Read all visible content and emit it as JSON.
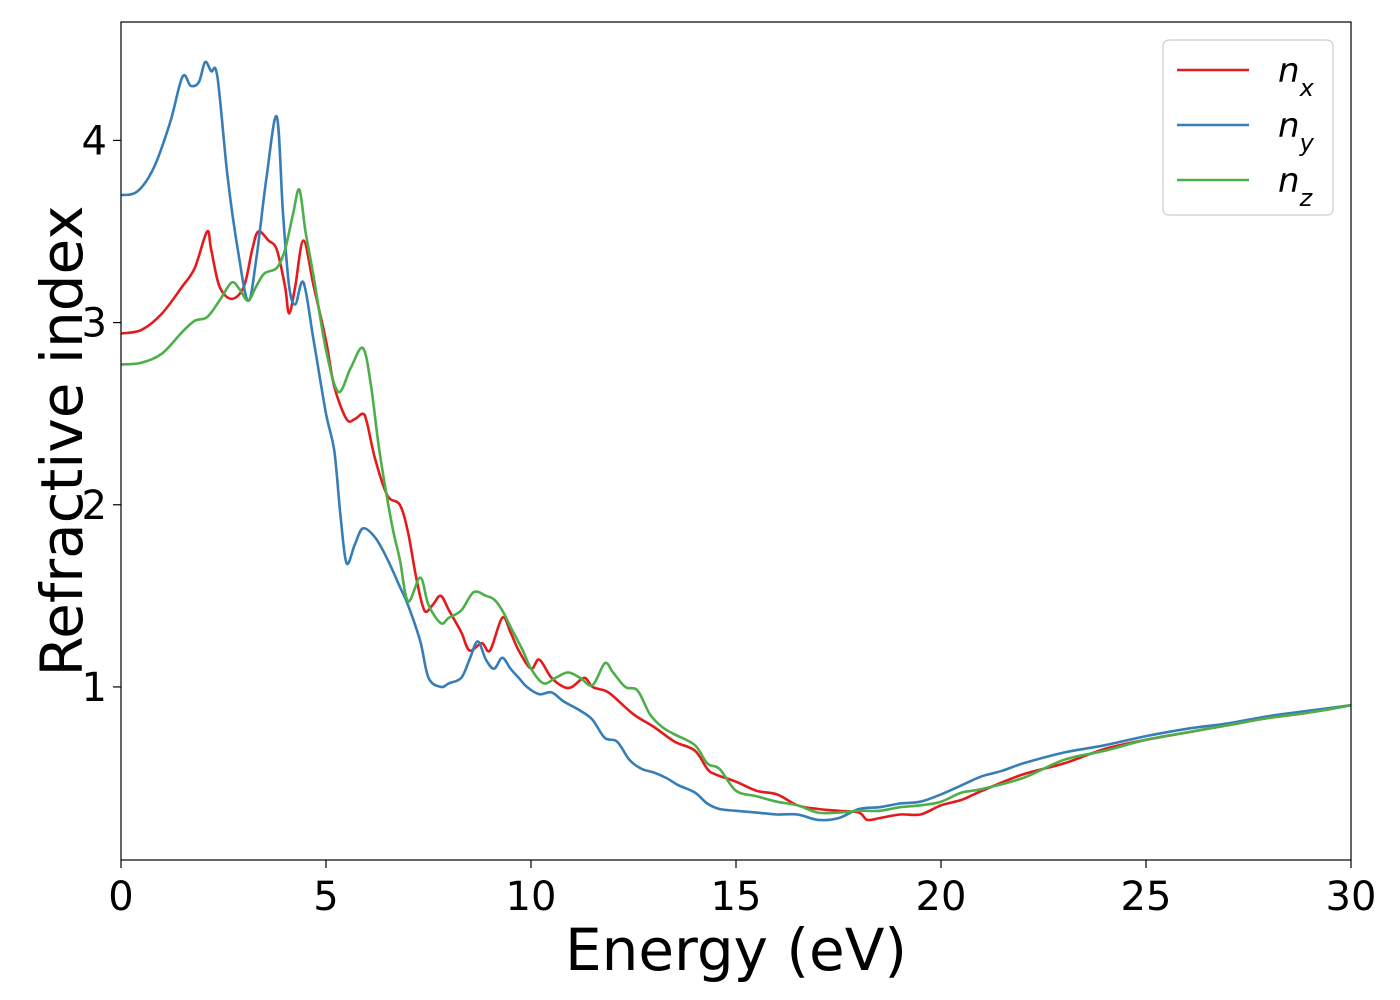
{
  "chart_data": {
    "type": "line",
    "xlabel": "Energy (eV)",
    "ylabel": "Refractive index",
    "xlim": [
      0,
      30
    ],
    "ylim": [
      0.05,
      4.65
    ],
    "xticks": [
      0,
      5,
      10,
      15,
      20,
      25,
      30
    ],
    "yticks": [
      1,
      2,
      3,
      4
    ],
    "grid": false,
    "legend_position": "top-right",
    "series": [
      {
        "name": "n",
        "subscript": "x",
        "color": "#e41a1c",
        "points": [
          [
            0,
            2.94
          ],
          [
            0.5,
            2.96
          ],
          [
            1,
            3.05
          ],
          [
            1.5,
            3.2
          ],
          [
            1.8,
            3.3
          ],
          [
            2.1,
            3.5
          ],
          [
            2.2,
            3.4
          ],
          [
            2.4,
            3.2
          ],
          [
            2.7,
            3.13
          ],
          [
            3,
            3.2
          ],
          [
            3.2,
            3.4
          ],
          [
            3.35,
            3.5
          ],
          [
            3.6,
            3.45
          ],
          [
            3.8,
            3.4
          ],
          [
            4,
            3.2
          ],
          [
            4.1,
            3.05
          ],
          [
            4.25,
            3.2
          ],
          [
            4.45,
            3.45
          ],
          [
            4.7,
            3.2
          ],
          [
            5,
            2.9
          ],
          [
            5.2,
            2.65
          ],
          [
            5.5,
            2.47
          ],
          [
            5.7,
            2.47
          ],
          [
            5.9,
            2.5
          ],
          [
            6,
            2.45
          ],
          [
            6.2,
            2.25
          ],
          [
            6.5,
            2.05
          ],
          [
            6.8,
            2.0
          ],
          [
            7,
            1.85
          ],
          [
            7.2,
            1.6
          ],
          [
            7.4,
            1.42
          ],
          [
            7.6,
            1.45
          ],
          [
            7.8,
            1.5
          ],
          [
            8,
            1.42
          ],
          [
            8.3,
            1.3
          ],
          [
            8.5,
            1.2
          ],
          [
            8.8,
            1.24
          ],
          [
            9,
            1.2
          ],
          [
            9.3,
            1.38
          ],
          [
            9.5,
            1.3
          ],
          [
            9.7,
            1.2
          ],
          [
            10,
            1.1
          ],
          [
            10.2,
            1.15
          ],
          [
            10.5,
            1.05
          ],
          [
            10.8,
            1.0
          ],
          [
            11,
            1.0
          ],
          [
            11.3,
            1.05
          ],
          [
            11.5,
            1.0
          ],
          [
            11.8,
            0.98
          ],
          [
            12,
            0.95
          ],
          [
            12.5,
            0.85
          ],
          [
            13,
            0.78
          ],
          [
            13.5,
            0.7
          ],
          [
            14,
            0.65
          ],
          [
            14.3,
            0.55
          ],
          [
            14.5,
            0.52
          ],
          [
            15,
            0.48
          ],
          [
            15.5,
            0.43
          ],
          [
            16,
            0.41
          ],
          [
            16.5,
            0.35
          ],
          [
            17,
            0.33
          ],
          [
            17.5,
            0.32
          ],
          [
            18,
            0.31
          ],
          [
            18.2,
            0.27
          ],
          [
            18.5,
            0.28
          ],
          [
            19,
            0.3
          ],
          [
            19.5,
            0.3
          ],
          [
            20,
            0.35
          ],
          [
            20.5,
            0.38
          ],
          [
            21,
            0.43
          ],
          [
            22,
            0.52
          ],
          [
            23,
            0.58
          ],
          [
            24,
            0.66
          ],
          [
            25,
            0.71
          ],
          [
            26,
            0.75
          ],
          [
            27,
            0.79
          ],
          [
            28,
            0.83
          ],
          [
            29,
            0.86
          ],
          [
            30,
            0.9
          ]
        ]
      },
      {
        "name": "n",
        "subscript": "y",
        "color": "#377eb8",
        "points": [
          [
            0,
            3.7
          ],
          [
            0.4,
            3.72
          ],
          [
            0.8,
            3.85
          ],
          [
            1.2,
            4.1
          ],
          [
            1.5,
            4.35
          ],
          [
            1.7,
            4.3
          ],
          [
            1.9,
            4.32
          ],
          [
            2.05,
            4.43
          ],
          [
            2.2,
            4.38
          ],
          [
            2.35,
            4.35
          ],
          [
            2.6,
            3.8
          ],
          [
            2.85,
            3.4
          ],
          [
            3.1,
            3.12
          ],
          [
            3.3,
            3.35
          ],
          [
            3.55,
            3.8
          ],
          [
            3.8,
            4.13
          ],
          [
            3.95,
            3.6
          ],
          [
            4.1,
            3.2
          ],
          [
            4.25,
            3.1
          ],
          [
            4.45,
            3.22
          ],
          [
            4.7,
            2.9
          ],
          [
            5,
            2.5
          ],
          [
            5.2,
            2.3
          ],
          [
            5.35,
            1.95
          ],
          [
            5.5,
            1.68
          ],
          [
            5.7,
            1.78
          ],
          [
            5.9,
            1.87
          ],
          [
            6.2,
            1.82
          ],
          [
            6.5,
            1.7
          ],
          [
            6.8,
            1.55
          ],
          [
            7,
            1.45
          ],
          [
            7.3,
            1.25
          ],
          [
            7.5,
            1.05
          ],
          [
            7.8,
            1.0
          ],
          [
            8,
            1.02
          ],
          [
            8.3,
            1.05
          ],
          [
            8.5,
            1.15
          ],
          [
            8.7,
            1.25
          ],
          [
            8.9,
            1.15
          ],
          [
            9.1,
            1.1
          ],
          [
            9.3,
            1.16
          ],
          [
            9.5,
            1.1
          ],
          [
            9.7,
            1.05
          ],
          [
            9.9,
            1.0
          ],
          [
            10.2,
            0.96
          ],
          [
            10.5,
            0.97
          ],
          [
            10.8,
            0.92
          ],
          [
            11.2,
            0.87
          ],
          [
            11.5,
            0.82
          ],
          [
            11.8,
            0.72
          ],
          [
            12.1,
            0.7
          ],
          [
            12.4,
            0.6
          ],
          [
            12.7,
            0.55
          ],
          [
            13,
            0.53
          ],
          [
            13.3,
            0.5
          ],
          [
            13.6,
            0.46
          ],
          [
            14,
            0.42
          ],
          [
            14.3,
            0.36
          ],
          [
            14.6,
            0.33
          ],
          [
            15,
            0.32
          ],
          [
            15.5,
            0.31
          ],
          [
            16,
            0.3
          ],
          [
            16.5,
            0.3
          ],
          [
            17,
            0.27
          ],
          [
            17.5,
            0.28
          ],
          [
            18,
            0.33
          ],
          [
            18.5,
            0.34
          ],
          [
            19,
            0.36
          ],
          [
            19.5,
            0.37
          ],
          [
            20,
            0.41
          ],
          [
            20.5,
            0.46
          ],
          [
            21,
            0.51
          ],
          [
            21.5,
            0.54
          ],
          [
            22,
            0.58
          ],
          [
            23,
            0.64
          ],
          [
            24,
            0.68
          ],
          [
            25,
            0.73
          ],
          [
            26,
            0.77
          ],
          [
            27,
            0.8
          ],
          [
            28,
            0.84
          ],
          [
            29,
            0.87
          ],
          [
            30,
            0.9
          ]
        ]
      },
      {
        "name": "n",
        "subscript": "z",
        "color": "#4daf4a",
        "points": [
          [
            0,
            2.77
          ],
          [
            0.5,
            2.78
          ],
          [
            1,
            2.83
          ],
          [
            1.5,
            2.95
          ],
          [
            1.8,
            3.01
          ],
          [
            2.1,
            3.03
          ],
          [
            2.4,
            3.12
          ],
          [
            2.7,
            3.22
          ],
          [
            2.9,
            3.18
          ],
          [
            3.1,
            3.12
          ],
          [
            3.3,
            3.2
          ],
          [
            3.5,
            3.27
          ],
          [
            3.8,
            3.3
          ],
          [
            4,
            3.4
          ],
          [
            4.2,
            3.6
          ],
          [
            4.35,
            3.73
          ],
          [
            4.5,
            3.5
          ],
          [
            4.7,
            3.25
          ],
          [
            5,
            2.85
          ],
          [
            5.3,
            2.62
          ],
          [
            5.6,
            2.75
          ],
          [
            5.9,
            2.86
          ],
          [
            6.1,
            2.65
          ],
          [
            6.3,
            2.3
          ],
          [
            6.6,
            1.9
          ],
          [
            6.8,
            1.7
          ],
          [
            7,
            1.47
          ],
          [
            7.3,
            1.6
          ],
          [
            7.5,
            1.45
          ],
          [
            7.8,
            1.35
          ],
          [
            8,
            1.38
          ],
          [
            8.3,
            1.42
          ],
          [
            8.6,
            1.52
          ],
          [
            8.9,
            1.5
          ],
          [
            9.1,
            1.48
          ],
          [
            9.3,
            1.42
          ],
          [
            9.5,
            1.33
          ],
          [
            9.8,
            1.2
          ],
          [
            10,
            1.1
          ],
          [
            10.3,
            1.02
          ],
          [
            10.6,
            1.05
          ],
          [
            10.9,
            1.08
          ],
          [
            11.2,
            1.05
          ],
          [
            11.5,
            1.01
          ],
          [
            11.8,
            1.13
          ],
          [
            12,
            1.08
          ],
          [
            12.3,
            1.0
          ],
          [
            12.6,
            0.98
          ],
          [
            12.9,
            0.85
          ],
          [
            13.2,
            0.78
          ],
          [
            13.5,
            0.74
          ],
          [
            14,
            0.68
          ],
          [
            14.3,
            0.58
          ],
          [
            14.6,
            0.55
          ],
          [
            15,
            0.43
          ],
          [
            15.5,
            0.4
          ],
          [
            16,
            0.37
          ],
          [
            16.5,
            0.35
          ],
          [
            17,
            0.31
          ],
          [
            17.5,
            0.31
          ],
          [
            18,
            0.32
          ],
          [
            18.5,
            0.32
          ],
          [
            19,
            0.34
          ],
          [
            19.5,
            0.35
          ],
          [
            20,
            0.37
          ],
          [
            20.5,
            0.42
          ],
          [
            21,
            0.44
          ],
          [
            22,
            0.5
          ],
          [
            23,
            0.6
          ],
          [
            24,
            0.65
          ],
          [
            25,
            0.71
          ],
          [
            26,
            0.75
          ],
          [
            27,
            0.79
          ],
          [
            28,
            0.83
          ],
          [
            29,
            0.86
          ],
          [
            30,
            0.9
          ]
        ]
      }
    ]
  }
}
